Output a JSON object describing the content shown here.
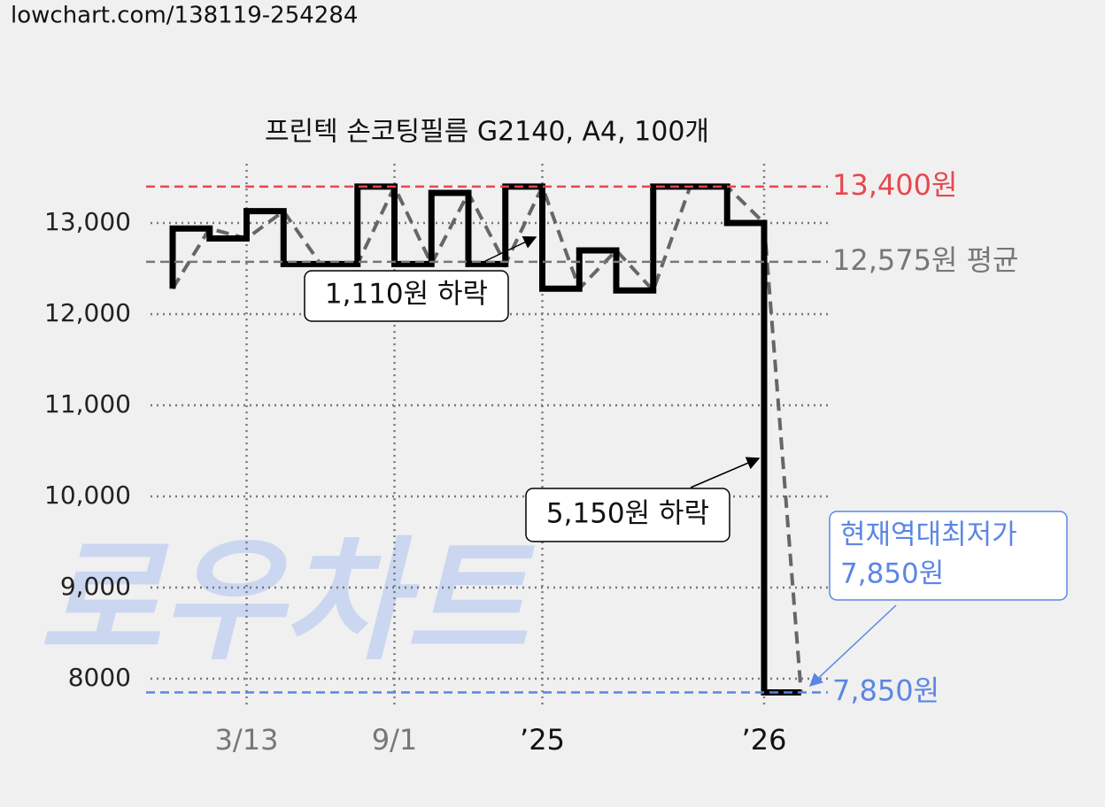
{
  "header": {
    "url": "lowchart.com/138119-254284"
  },
  "chart_data": {
    "type": "line",
    "title": "프린텍 손코팅필름 G2140, A4, 100개",
    "watermark": "로우차트",
    "categories": [
      null,
      null,
      "3/13",
      null,
      null,
      null,
      "9/1",
      null,
      null,
      null,
      "’25",
      null,
      null,
      null,
      null,
      null,
      "’26",
      null
    ],
    "values": [
      12280,
      12940,
      12830,
      13130,
      12550,
      12550,
      13400,
      12550,
      13330,
      12550,
      13400,
      12280,
      12700,
      12260,
      13400,
      13400,
      13000,
      7850
    ],
    "step_color": "#000000",
    "trend_color": "#666666",
    "ylim": [
      7680,
      13650
    ],
    "yticks": [
      8000,
      {
        "value": 9000,
        "label": "9,000"
      },
      {
        "value": 10000,
        "label": "10,000"
      },
      {
        "value": 11000,
        "label": "11,000"
      },
      {
        "value": 12000,
        "label": "12,000"
      },
      {
        "value": 13000,
        "label": "13,000"
      }
    ],
    "grid": true,
    "reference_lines": [
      {
        "value": 13400,
        "label": "13,400원",
        "color": "#e8474f"
      },
      {
        "value": 12575,
        "label": "12,575원 평균",
        "color": "#777777"
      },
      {
        "value": 7850,
        "label": "7,850원",
        "color": "#5b86e5"
      }
    ],
    "annotations": [
      {
        "lines": [
          "1,110원 하락"
        ]
      },
      {
        "lines": [
          "5,150원 하락"
        ]
      },
      {
        "lines": [
          "현재역대최저가",
          "7,850원"
        ],
        "color": "#5b86e5"
      }
    ]
  }
}
